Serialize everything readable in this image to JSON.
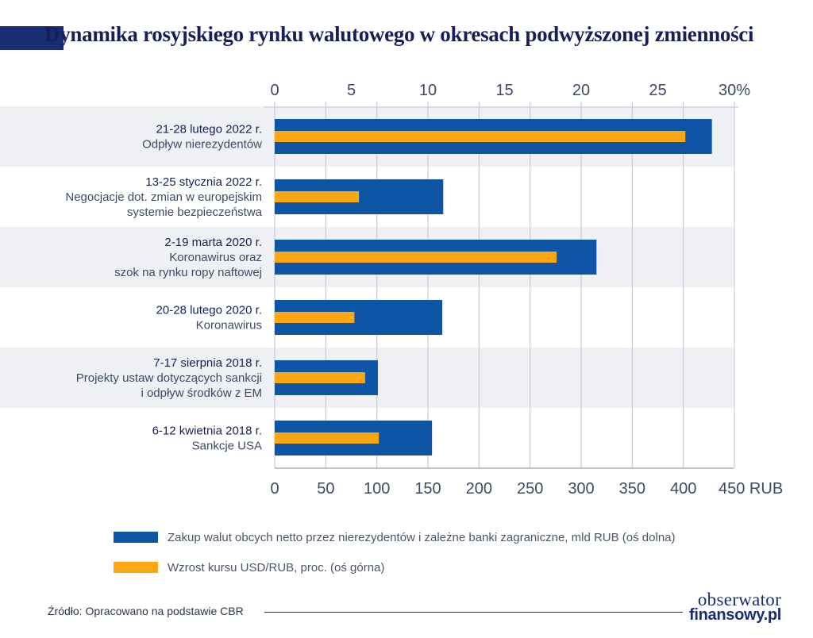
{
  "title": "Dynamika rosyjskiego rynku walutowego w okresach podwyższonej zmienności",
  "colors": {
    "rub_bar": "#0d56a6",
    "usd_bar": "#fca711",
    "band": "#eef0f3",
    "grid": "#c9ccd1",
    "title_accent": "#1a2d73"
  },
  "top_axis": {
    "ticks": [
      "0",
      "5",
      "10",
      "15",
      "20",
      "25",
      "30%"
    ],
    "range": [
      0,
      30
    ]
  },
  "bottom_axis": {
    "ticks": [
      "0",
      "50",
      "100",
      "150",
      "200",
      "250",
      "300",
      "350",
      "400",
      "450 RUB"
    ],
    "range": [
      0,
      450
    ]
  },
  "chart_data": {
    "type": "bar",
    "orientation": "horizontal",
    "categories": [
      {
        "title": "21-28 lutego 2022 r.",
        "subtitle": [
          "Odpływ nierezydentów"
        ]
      },
      {
        "title": "13-25 stycznia 2022 r.",
        "subtitle": [
          "Negocjacje dot. zmian w europejskim",
          "systemie bezpieczeństwa"
        ]
      },
      {
        "title": "2-19 marta 2020 r.",
        "subtitle": [
          "Koronawirus oraz",
          "szok na rynku ropy naftowej"
        ]
      },
      {
        "title": "20-28 lutego 2020 r.",
        "subtitle": [
          "Koronawirus"
        ]
      },
      {
        "title": "7-17 sierpnia 2018 r.",
        "subtitle": [
          "Projekty ustaw dotyczących sankcji",
          "i odpływ środków z EM"
        ]
      },
      {
        "title": "6-12 kwietnia 2018 r.",
        "subtitle": [
          "Sankcje USA"
        ]
      }
    ],
    "series": [
      {
        "name": "Zakup walut obcych netto przez nierezydentów i zależne banki zagraniczne, mld RUB (oś dolna)",
        "axis": "bottom",
        "values": [
          428,
          165,
          315,
          164,
          101,
          154
        ]
      },
      {
        "name": "Wzrost kursu USD/RUB, proc. (oś górna)",
        "axis": "top",
        "values": [
          26.8,
          5.5,
          18.4,
          5.2,
          5.9,
          6.8
        ]
      }
    ],
    "grid": true
  },
  "legend": {
    "item1": "Zakup walut obcych netto przez nierezydentów i zależne banki zagraniczne, mld RUB (oś dolna)",
    "item2": "Wzrost kursu USD/RUB, proc. (oś górna)"
  },
  "source": "Źródło: Opracowano na podstawie CBR",
  "logo": {
    "line1": "obserwator",
    "line2": "finansowy.pl"
  }
}
